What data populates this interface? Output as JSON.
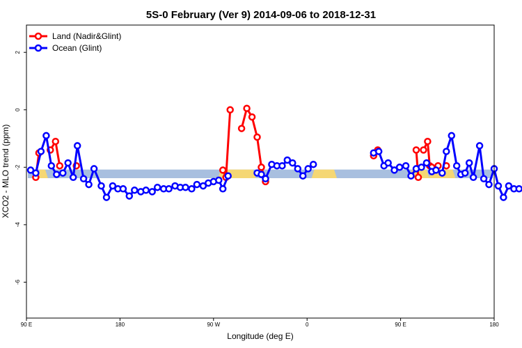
{
  "chart_data": {
    "type": "line",
    "title": "5S-0 February (Ver 9)   2014-09-06 to 2018-12-31",
    "xlabel": "Longitude (deg E)",
    "ylabel": "XCO2 - MLO trend (ppm)",
    "xlim": [
      90,
      540
    ],
    "ylim": [
      -7.25,
      2.95
    ],
    "x_ticks": [
      {
        "value": 90,
        "label": "90 E"
      },
      {
        "value": 180,
        "label": "180"
      },
      {
        "value": 270,
        "label": "90 W"
      },
      {
        "value": 360,
        "label": "0"
      },
      {
        "value": 450,
        "label": "90 E"
      },
      {
        "value": 540,
        "label": "180"
      }
    ],
    "y_ticks": [
      {
        "value": 2,
        "label": "2"
      },
      {
        "value": 0,
        "label": "0"
      },
      {
        "value": -2,
        "label": "-2"
      },
      {
        "value": -4,
        "label": "-4"
      },
      {
        "value": -6,
        "label": "-6"
      }
    ],
    "background_band": {
      "ymin": -2.38,
      "ymax": -2.08,
      "color": "#a8bfdf",
      "land_color": "#f5d774",
      "land_segments": [
        [
          103,
          108
        ],
        [
          277,
          308
        ],
        [
          367,
          386
        ],
        [
          461,
          475
        ],
        [
          480,
          500
        ]
      ]
    },
    "legend": {
      "position": "top-left",
      "entries": [
        {
          "label": "Land (Nadir&Glint)",
          "color": "#ff0000"
        },
        {
          "label": "Ocean (Glint)",
          "color": "#0000ff"
        }
      ]
    },
    "series": [
      {
        "name": "Land (Nadir&Glint)",
        "color": "#ff0000",
        "segments": [
          [
            [
              99,
              -2.35
            ],
            [
              102,
              -1.5
            ]
          ],
          [
            [
              113,
              -1.4
            ],
            [
              118,
              -1.1
            ],
            [
              122,
              -1.95
            ]
          ],
          [
            [
              138,
              -1.95
            ]
          ],
          [
            [
              279,
              -2.1
            ],
            [
              282,
              -2.35
            ],
            [
              286,
              0.0
            ]
          ],
          [
            [
              297,
              -0.65
            ],
            [
              302,
              0.05
            ],
            [
              307,
              -0.25
            ],
            [
              312,
              -0.95
            ],
            [
              316,
              -2.0
            ],
            [
              320,
              -2.5
            ]
          ],
          [
            [
              424,
              -1.6
            ],
            [
              428,
              -1.4
            ]
          ],
          [
            [
              465,
              -1.4
            ],
            [
              467,
              -2.35
            ]
          ],
          [
            [
              472,
              -1.4
            ],
            [
              476,
              -1.1
            ],
            [
              478,
              -1.95
            ]
          ],
          [
            [
              480,
              -2.0
            ],
            [
              486,
              -1.95
            ]
          ],
          [
            [
              494,
              -1.95
            ]
          ]
        ]
      },
      {
        "name": "Ocean (Glint)",
        "color": "#0000ff",
        "segments": [
          [
            [
              94,
              -2.1
            ],
            [
              99,
              -2.2
            ],
            [
              104,
              -1.45
            ],
            [
              109,
              -0.9
            ],
            [
              114,
              -1.95
            ],
            [
              119,
              -2.25
            ],
            [
              125,
              -2.2
            ],
            [
              130,
              -1.85
            ],
            [
              135,
              -2.35
            ],
            [
              139,
              -1.25
            ],
            [
              145,
              -2.4
            ],
            [
              150,
              -2.6
            ],
            [
              155,
              -2.05
            ],
            [
              162,
              -2.65
            ],
            [
              167,
              -3.05
            ],
            [
              173,
              -2.65
            ],
            [
              178,
              -2.75
            ],
            [
              183,
              -2.75
            ],
            [
              189,
              -3.0
            ],
            [
              194,
              -2.8
            ],
            [
              200,
              -2.85
            ],
            [
              205,
              -2.8
            ],
            [
              211,
              -2.85
            ],
            [
              216,
              -2.7
            ],
            [
              222,
              -2.75
            ],
            [
              227,
              -2.75
            ],
            [
              233,
              -2.65
            ],
            [
              238,
              -2.7
            ],
            [
              243,
              -2.7
            ],
            [
              249,
              -2.75
            ],
            [
              254,
              -2.6
            ],
            [
              260,
              -2.65
            ],
            [
              265,
              -2.55
            ],
            [
              270,
              -2.5
            ],
            [
              275,
              -2.45
            ],
            [
              279,
              -2.75
            ],
            [
              284,
              -2.3
            ]
          ],
          [
            [
              312,
              -2.2
            ],
            [
              316,
              -2.25
            ],
            [
              320,
              -2.4
            ],
            [
              326,
              -1.9
            ],
            [
              331,
              -1.95
            ],
            [
              336,
              -1.95
            ],
            [
              341,
              -1.75
            ],
            [
              346,
              -1.85
            ],
            [
              351,
              -2.05
            ],
            [
              356,
              -2.3
            ],
            [
              361,
              -2.05
            ],
            [
              366,
              -1.9
            ]
          ],
          [
            [
              424,
              -1.5
            ],
            [
              429,
              -1.45
            ],
            [
              434,
              -1.95
            ],
            [
              438,
              -1.85
            ],
            [
              444,
              -2.1
            ],
            [
              449,
              -2.0
            ],
            [
              455,
              -1.95
            ],
            [
              460,
              -2.3
            ],
            [
              465,
              -2.05
            ],
            [
              470,
              -2.0
            ],
            [
              475,
              -1.85
            ],
            [
              480,
              -2.15
            ],
            [
              484,
              -2.1
            ],
            [
              490,
              -2.2
            ],
            [
              494,
              -1.45
            ],
            [
              499,
              -0.9
            ],
            [
              504,
              -1.95
            ],
            [
              508,
              -2.25
            ],
            [
              512,
              -2.2
            ],
            [
              516,
              -1.85
            ],
            [
              520,
              -2.35
            ],
            [
              526,
              -1.25
            ],
            [
              530,
              -2.4
            ],
            [
              535,
              -2.6
            ],
            [
              540,
              -2.05
            ],
            [
              544,
              -2.65
            ],
            [
              549,
              -3.05
            ],
            [
              554,
              -2.65
            ],
            [
              559,
              -2.75
            ],
            [
              564,
              -2.75
            ]
          ]
        ]
      }
    ]
  }
}
